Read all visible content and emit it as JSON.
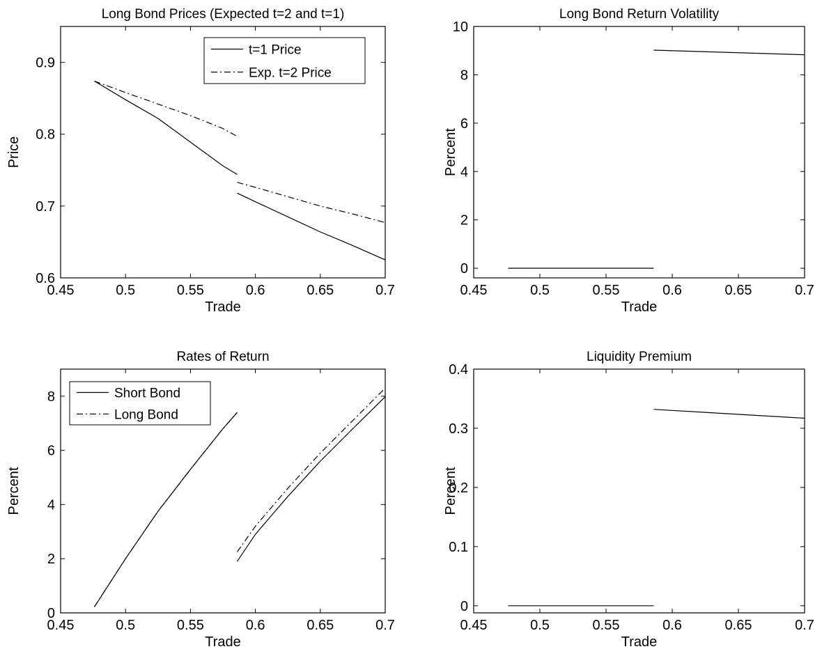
{
  "chart_data": [
    {
      "type": "line",
      "title": "Long Bond Prices (Expected t=2 and t=1)",
      "xlabel": "Trade",
      "ylabel": "Price",
      "xlim": [
        0.45,
        0.7
      ],
      "ylim": [
        0.6,
        0.95
      ],
      "xticks": [
        "0.45",
        "0.5",
        "0.55",
        "0.6",
        "0.65",
        "0.7"
      ],
      "yticks": [
        "0.6",
        "0.7",
        "0.8",
        "0.9"
      ],
      "legend": "top-right",
      "grid": false,
      "series": [
        {
          "name": "t=1 Price",
          "style": "solid",
          "segments": [
            [
              [
                0.476,
                0.874
              ],
              [
                0.5,
                0.848
              ],
              [
                0.525,
                0.822
              ],
              [
                0.55,
                0.789
              ],
              [
                0.575,
                0.756
              ],
              [
                0.586,
                0.744
              ]
            ],
            [
              [
                0.586,
                0.718
              ],
              [
                0.6,
                0.706
              ],
              [
                0.625,
                0.685
              ],
              [
                0.65,
                0.664
              ],
              [
                0.675,
                0.645
              ],
              [
                0.7,
                0.625
              ]
            ]
          ]
        },
        {
          "name": "Exp. t=2 Price",
          "style": "dashdot",
          "segments": [
            [
              [
                0.476,
                0.874
              ],
              [
                0.5,
                0.858
              ],
              [
                0.525,
                0.842
              ],
              [
                0.55,
                0.826
              ],
              [
                0.575,
                0.808
              ],
              [
                0.586,
                0.797
              ]
            ],
            [
              [
                0.586,
                0.733
              ],
              [
                0.6,
                0.726
              ],
              [
                0.625,
                0.713
              ],
              [
                0.65,
                0.7
              ],
              [
                0.675,
                0.689
              ],
              [
                0.7,
                0.677
              ]
            ]
          ]
        }
      ]
    },
    {
      "type": "line",
      "title": "Long Bond Return Volatility",
      "xlabel": "Trade",
      "ylabel": "Percent",
      "xlim": [
        0.45,
        0.7
      ],
      "ylim": [
        -0.4,
        10
      ],
      "xticks": [
        "0.45",
        "0.5",
        "0.55",
        "0.6",
        "0.65",
        "0.7"
      ],
      "yticks": [
        "0",
        "2",
        "4",
        "6",
        "8",
        "10"
      ],
      "grid": false,
      "series": [
        {
          "style": "solid",
          "segments": [
            [
              [
                0.476,
                0.0
              ],
              [
                0.586,
                0.0
              ]
            ],
            [
              [
                0.586,
                9.02
              ],
              [
                0.7,
                8.83
              ]
            ]
          ]
        }
      ]
    },
    {
      "type": "line",
      "title": "Rates of Return",
      "xlabel": "Trade",
      "ylabel": "Percent",
      "xlim": [
        0.45,
        0.7
      ],
      "ylim": [
        0,
        9
      ],
      "xticks": [
        "0.45",
        "0.5",
        "0.55",
        "0.6",
        "0.65",
        "0.7"
      ],
      "yticks": [
        "0",
        "2",
        "4",
        "6",
        "8"
      ],
      "legend": "top-left",
      "grid": false,
      "series": [
        {
          "name": "Short Bond",
          "style": "solid",
          "segments": [
            [
              [
                0.476,
                0.22
              ],
              [
                0.5,
                2.0
              ],
              [
                0.525,
                3.75
              ],
              [
                0.55,
                5.3
              ],
              [
                0.575,
                6.8
              ],
              [
                0.586,
                7.4
              ]
            ],
            [
              [
                0.586,
                1.9
              ],
              [
                0.6,
                2.9
              ],
              [
                0.625,
                4.3
              ],
              [
                0.65,
                5.6
              ],
              [
                0.675,
                6.8
              ],
              [
                0.7,
                7.98
              ]
            ]
          ]
        },
        {
          "name": "Long Bond",
          "style": "dashdot",
          "segments": [
            [
              [
                0.476,
                0.22
              ],
              [
                0.5,
                2.0
              ],
              [
                0.525,
                3.75
              ],
              [
                0.55,
                5.3
              ],
              [
                0.575,
                6.8
              ],
              [
                0.586,
                7.4
              ]
            ],
            [
              [
                0.586,
                2.25
              ],
              [
                0.6,
                3.2
              ],
              [
                0.625,
                4.6
              ],
              [
                0.65,
                5.9
              ],
              [
                0.675,
                7.1
              ],
              [
                0.7,
                8.3
              ]
            ]
          ]
        }
      ]
    },
    {
      "type": "line",
      "title": "Liquidity Premium",
      "xlabel": "Trade",
      "ylabel": "Percent",
      "xlim": [
        0.45,
        0.7
      ],
      "ylim": [
        -0.012,
        0.4
      ],
      "xticks": [
        "0.45",
        "0.5",
        "0.55",
        "0.6",
        "0.65",
        "0.7"
      ],
      "yticks": [
        "0",
        "0.1",
        "0.2",
        "0.3",
        "0.4"
      ],
      "grid": false,
      "series": [
        {
          "style": "solid",
          "segments": [
            [
              [
                0.476,
                0.0
              ],
              [
                0.586,
                0.0
              ]
            ],
            [
              [
                0.586,
                0.332
              ],
              [
                0.7,
                0.317
              ]
            ]
          ]
        }
      ]
    }
  ]
}
